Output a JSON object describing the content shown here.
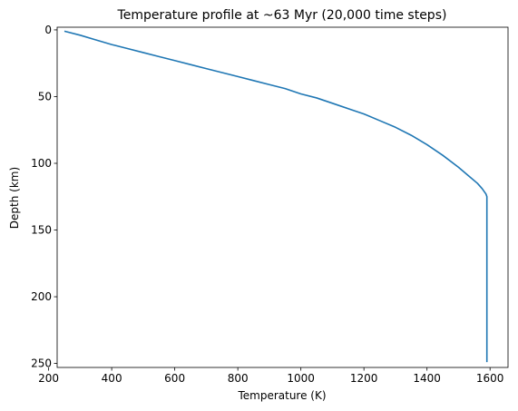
{
  "chart_data": {
    "type": "line",
    "title": "Temperature profile at ~63 Myr (20,000 time steps)",
    "xlabel": "Temperature (K)",
    "ylabel": "Depth (km)",
    "xlim": [
      227,
      1657
    ],
    "ylim": [
      253,
      -2
    ],
    "y_inverted": true,
    "grid": false,
    "xticks": [
      200,
      400,
      600,
      800,
      1000,
      1200,
      1400,
      1600
    ],
    "yticks": [
      0,
      50,
      100,
      150,
      200,
      250
    ],
    "colors": {
      "line": "#1f77b4"
    },
    "series": [
      {
        "x": [
          250,
          300,
          350,
          400,
          450,
          500,
          550,
          600,
          650,
          700,
          750,
          800,
          850,
          900,
          950,
          1000,
          1050,
          1100,
          1150,
          1200,
          1250,
          1300,
          1350,
          1400,
          1450,
          1500,
          1530,
          1560,
          1575,
          1587,
          1590,
          1590,
          1590,
          1590
        ],
        "y": [
          1,
          4,
          7.5,
          11,
          14,
          17,
          20,
          23,
          26,
          29,
          32,
          35,
          38,
          41,
          44,
          48,
          51,
          55,
          59,
          63,
          68,
          73,
          79,
          86,
          94,
          103,
          109,
          115,
          119,
          123,
          125,
          150,
          200,
          249
        ]
      }
    ]
  }
}
